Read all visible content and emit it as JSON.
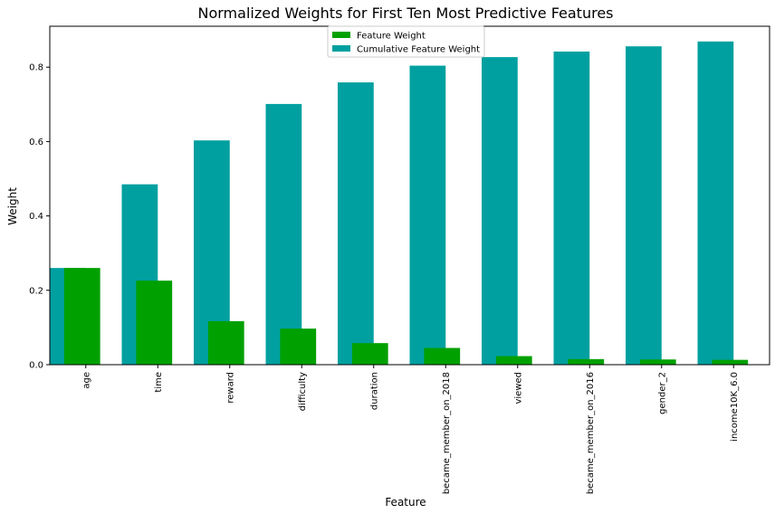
{
  "chart_data": {
    "type": "bar",
    "title": "Normalized Weights for First Ten Most Predictive Features",
    "xlabel": "Feature",
    "ylabel": "Weight",
    "categories": [
      "age",
      "time",
      "reward",
      "difficulty",
      "duration",
      "became_member_on_2018",
      "viewed",
      "became_member_on_2016",
      "gender_2",
      "income10K_6.0"
    ],
    "series": [
      {
        "name": "Cumulative Feature Weight",
        "color": "#00A0A0",
        "values": [
          0.26,
          0.485,
          0.603,
          0.701,
          0.759,
          0.804,
          0.827,
          0.842,
          0.856,
          0.869
        ]
      },
      {
        "name": "Feature Weight",
        "color": "#00A000",
        "values": [
          0.26,
          0.226,
          0.117,
          0.097,
          0.058,
          0.045,
          0.023,
          0.015,
          0.014,
          0.013
        ]
      }
    ],
    "ylim": [
      0,
      0.91
    ],
    "yticks": [
      0.0,
      0.2,
      0.4,
      0.6,
      0.8
    ],
    "ytick_labels": [
      "0.0",
      "0.2",
      "0.4",
      "0.6",
      "0.8"
    ],
    "legend": {
      "position": "upper-center",
      "entries": [
        "Feature Weight",
        "Cumulative Feature Weight"
      ]
    },
    "grid": false
  }
}
